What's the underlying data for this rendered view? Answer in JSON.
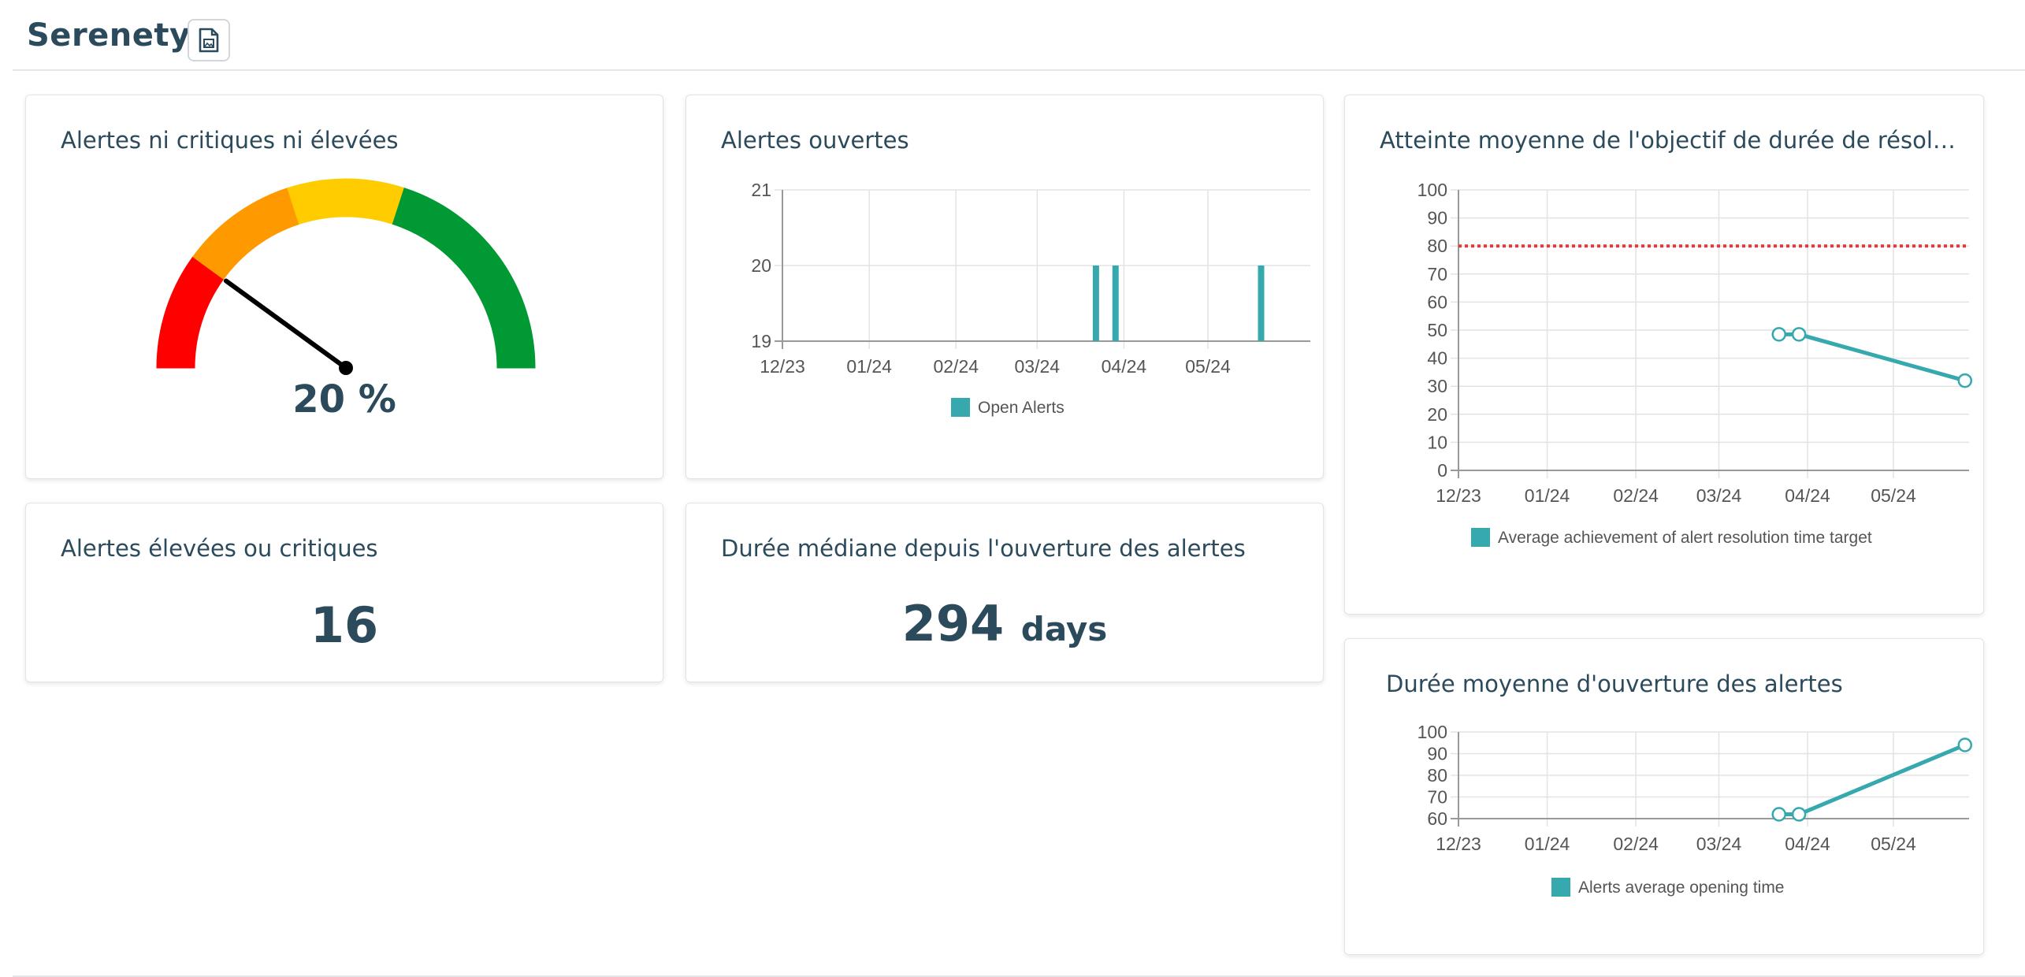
{
  "header": {
    "app_name": "Serenety",
    "report_icon": "report-file-icon"
  },
  "gauge_card": {
    "title": "Alertes ni critiques ni élevées",
    "value_label": "20 %",
    "value": 20,
    "segment_colors": [
      "#ff0000",
      "#ff9900",
      "#ffcc00",
      "#009933"
    ]
  },
  "open_alerts_card": {
    "title": "Alertes ouvertes",
    "legend": "Open Alerts",
    "chart_data": {
      "type": "bar",
      "x_ticks": [
        "12/23",
        "01/24",
        "02/24",
        "03/24",
        "04/24",
        "05/24"
      ],
      "y_ticks": [
        "19",
        "20",
        "21"
      ],
      "ylim": [
        19,
        21
      ],
      "series": [
        {
          "name": "Open Alerts",
          "points": [
            {
              "x": "2024-03-22",
              "y": 20
            },
            {
              "x": "2024-03-29",
              "y": 20
            },
            {
              "x": "2024-05-20",
              "y": 20
            }
          ]
        }
      ],
      "color": "#36a9ae",
      "grid": true,
      "legend_position": "bottom"
    }
  },
  "target_card": {
    "title": "Atteinte moyenne de l'objectif de durée de résolution ...",
    "legend": "Average achievement of alert resolution time target",
    "chart_data": {
      "type": "line",
      "x_ticks": [
        "12/23",
        "01/24",
        "02/24",
        "03/24",
        "04/24",
        "05/24"
      ],
      "y_ticks": [
        "0",
        "10",
        "20",
        "30",
        "40",
        "50",
        "60",
        "70",
        "80",
        "90",
        "100"
      ],
      "ylim": [
        0,
        100
      ],
      "target_line": 80,
      "target_color": "#e53935",
      "series": [
        {
          "name": "Average achievement of alert resolution time target",
          "points": [
            {
              "x": "2024-03-22",
              "y": 48.5
            },
            {
              "x": "2024-03-29",
              "y": 48.5
            },
            {
              "x": "2024-05-26",
              "y": 32
            }
          ]
        }
      ],
      "color": "#36a9ae",
      "grid": true,
      "legend_position": "bottom"
    }
  },
  "high_card": {
    "title": "Alertes élevées ou critiques",
    "value": "16"
  },
  "median_card": {
    "title": "Durée médiane depuis l'ouverture des alertes",
    "value": "294",
    "unit": "days"
  },
  "avg_card": {
    "title": "Durée moyenne d'ouverture des alertes",
    "legend": "Alerts average opening time",
    "chart_data": {
      "type": "line",
      "x_ticks": [
        "12/23",
        "01/24",
        "02/24",
        "03/24",
        "04/24",
        "05/24"
      ],
      "y_ticks": [
        "60",
        "70",
        "80",
        "90",
        "100"
      ],
      "ylim": [
        60,
        100
      ],
      "series": [
        {
          "name": "Alerts average opening time",
          "points": [
            {
              "x": "2024-03-22",
              "y": 62
            },
            {
              "x": "2024-03-29",
              "y": 62
            },
            {
              "x": "2024-05-26",
              "y": 94
            }
          ]
        }
      ],
      "color": "#36a9ae",
      "grid": true,
      "legend_position": "bottom"
    }
  }
}
